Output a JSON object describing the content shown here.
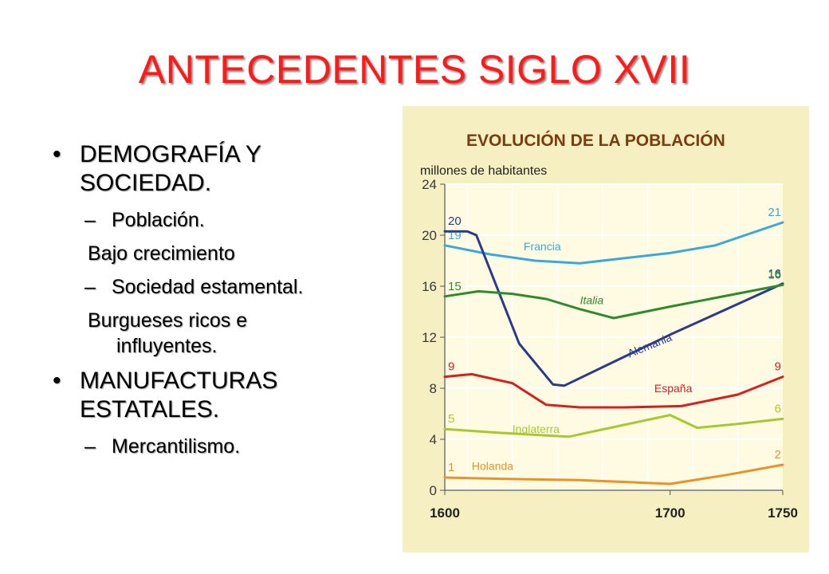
{
  "slide": {
    "title": "ANTECEDENTES SIGLO XVII",
    "bullet_1_line1": "DEMOGRAFÍA Y",
    "bullet_1_line2": "SOCIEDAD.",
    "sub_1": "Población.",
    "note_1": "Bajo crecimiento",
    "sub_2": "Sociedad estamental.",
    "note_2_line1": "Burgueses ricos e",
    "note_2_line2": "influyentes.",
    "bullet_2_line1": "MANUFACTURAS",
    "bullet_2_line2": "ESTATALES.",
    "sub_3": "Mercantilismo.",
    "bullet_glyph": "•",
    "dash_glyph": "–"
  },
  "chart_data": {
    "type": "line",
    "title": "EVOLUCIÓN DE LA POBLACIÓN",
    "ylabel": "millones de habitantes",
    "xlim": [
      1600,
      1750
    ],
    "ylim": [
      0,
      24
    ],
    "y_ticks": [
      0,
      4,
      8,
      12,
      16,
      20,
      24
    ],
    "x_tick_labels": [
      {
        "x": 1600,
        "label": "1600"
      },
      {
        "x": 1700,
        "label": "1700"
      },
      {
        "x": 1750,
        "label": "1750"
      }
    ],
    "x_gridlines": [
      1610,
      1630,
      1650,
      1670,
      1690,
      1710,
      1730
    ],
    "colors": {
      "background": "#f6efc2",
      "plot_background": "#fffbe3",
      "title": "#7a3b10",
      "axis_text": "#3a3a3a"
    },
    "series": [
      {
        "name": "Francia",
        "color": "#3aa9d8",
        "start_label": "19",
        "end_label": "21",
        "label_at": [
          1635,
          18.8
        ],
        "points": [
          [
            1600,
            19.2
          ],
          [
            1620,
            18.5
          ],
          [
            1640,
            18.0
          ],
          [
            1660,
            17.8
          ],
          [
            1680,
            18.2
          ],
          [
            1700,
            18.6
          ],
          [
            1720,
            19.2
          ],
          [
            1750,
            21.0
          ]
        ]
      },
      {
        "name": "Alemania",
        "color": "#2a3a8c",
        "start_label": "20",
        "end_label": "16",
        "label_at": [
          1682,
          10.4
        ],
        "label_rotate": -22,
        "points": [
          [
            1600,
            20.3
          ],
          [
            1610,
            20.3
          ],
          [
            1614,
            20.0
          ],
          [
            1633,
            11.5
          ],
          [
            1648,
            8.3
          ],
          [
            1653,
            8.2
          ],
          [
            1700,
            12.2
          ],
          [
            1750,
            16.2
          ]
        ]
      },
      {
        "name": "Italia",
        "color": "#2e8a2e",
        "start_label": "15",
        "end_label": "16",
        "label_at": [
          1660,
          14.6
        ],
        "label_italic": true,
        "points": [
          [
            1600,
            15.2
          ],
          [
            1615,
            15.6
          ],
          [
            1630,
            15.4
          ],
          [
            1645,
            15.0
          ],
          [
            1660,
            14.2
          ],
          [
            1675,
            13.5
          ],
          [
            1700,
            14.4
          ],
          [
            1750,
            16.1
          ]
        ]
      },
      {
        "name": "España",
        "color": "#d42020",
        "start_label": "9",
        "end_label": "9",
        "label_at": [
          1693,
          7.7
        ],
        "points": [
          [
            1600,
            8.9
          ],
          [
            1612,
            9.1
          ],
          [
            1630,
            8.4
          ],
          [
            1645,
            6.7
          ],
          [
            1660,
            6.5
          ],
          [
            1680,
            6.5
          ],
          [
            1705,
            6.6
          ],
          [
            1730,
            7.5
          ],
          [
            1750,
            8.9
          ]
        ]
      },
      {
        "name": "Inglaterra",
        "color": "#a8c832",
        "start_label": "5",
        "end_label": "6",
        "label_at": [
          1630,
          4.5
        ],
        "points": [
          [
            1600,
            4.8
          ],
          [
            1625,
            4.5
          ],
          [
            1655,
            4.2
          ],
          [
            1700,
            5.9
          ],
          [
            1712,
            4.9
          ],
          [
            1730,
            5.2
          ],
          [
            1750,
            5.6
          ]
        ]
      },
      {
        "name": "Holanda",
        "color": "#e8922a",
        "start_label": "1",
        "end_label": "2",
        "label_at": [
          1612,
          1.6
        ],
        "points": [
          [
            1600,
            1.0
          ],
          [
            1625,
            0.9
          ],
          [
            1660,
            0.8
          ],
          [
            1700,
            0.5
          ],
          [
            1725,
            1.2
          ],
          [
            1750,
            2.0
          ]
        ]
      }
    ]
  }
}
